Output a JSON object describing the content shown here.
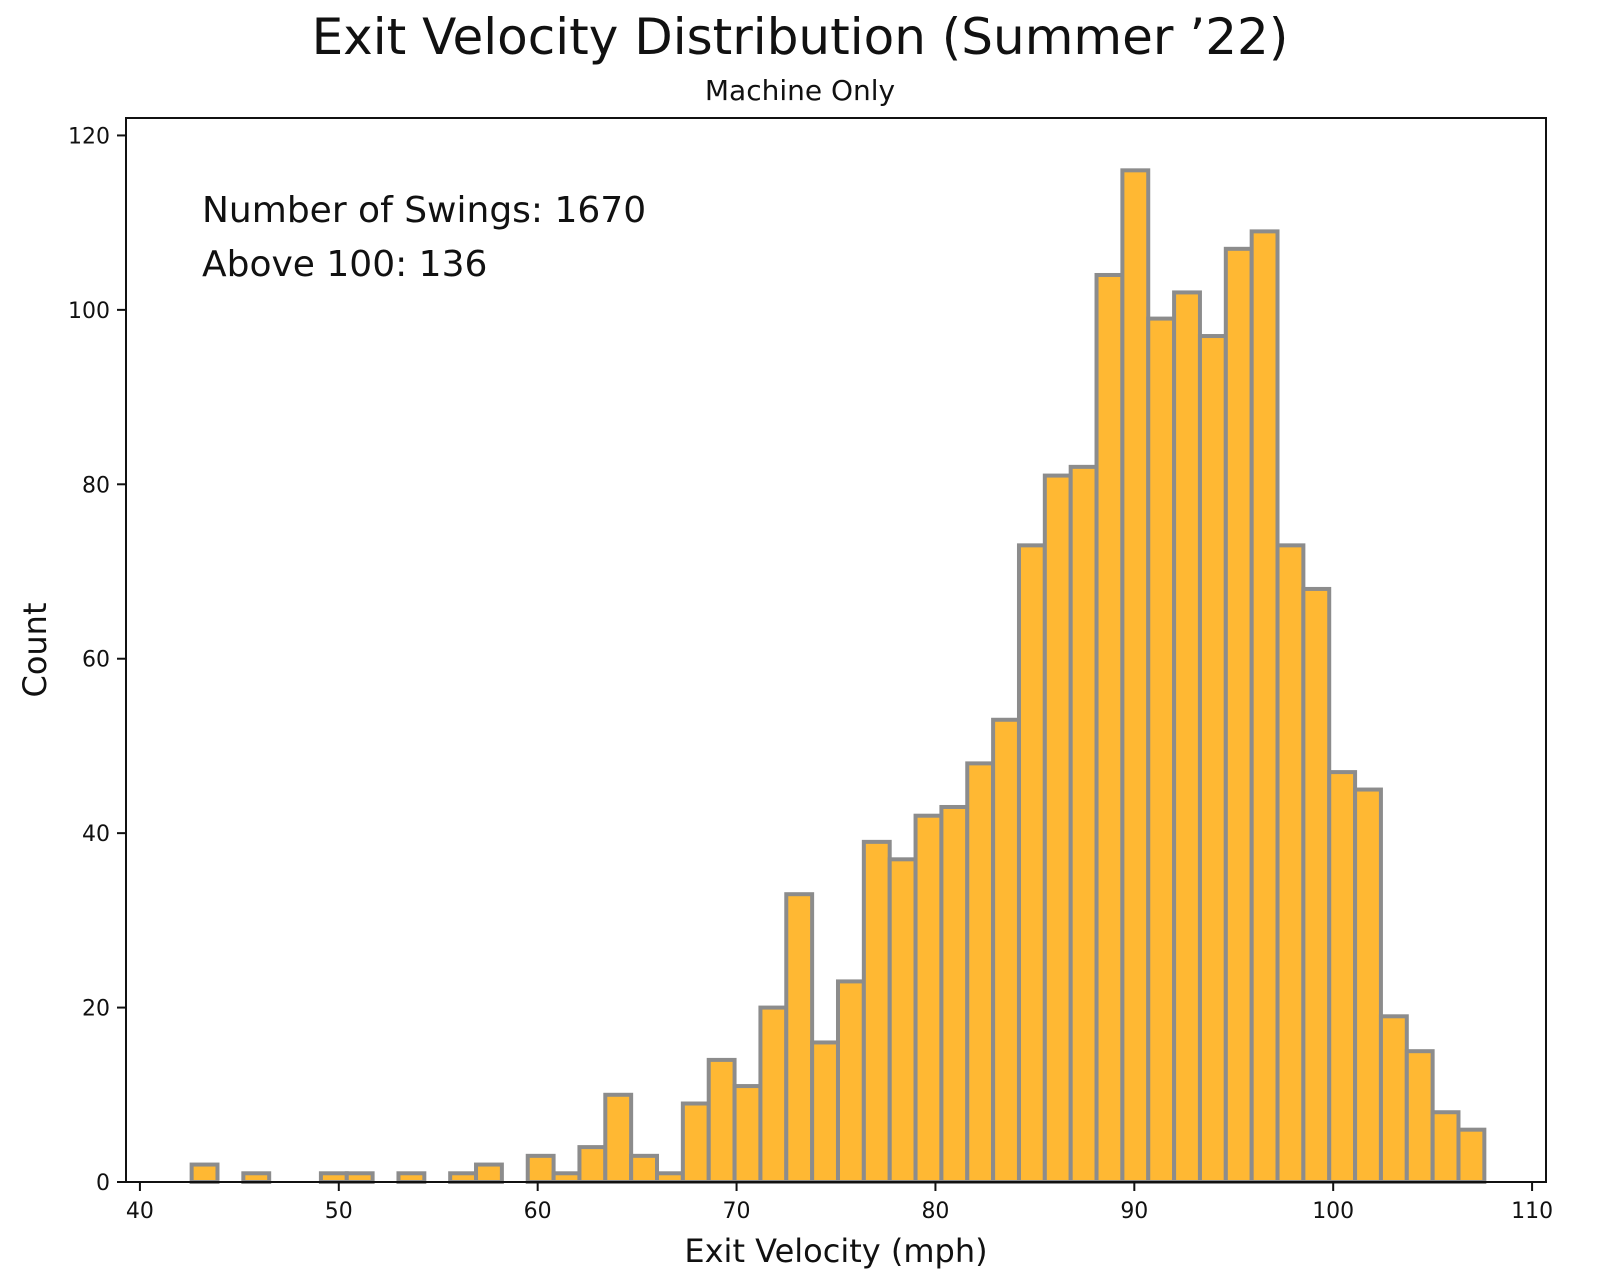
{
  "chart_data": {
    "type": "bar",
    "title": "Exit Velocity Distribution (Summer ’22)",
    "subtitle": "Machine Only",
    "xlabel": "Exit Velocity (mph)",
    "ylabel": "Count",
    "xlim": [
      39.3,
      110.7
    ],
    "ylim": [
      0,
      122
    ],
    "xticks": [
      40,
      50,
      60,
      70,
      80,
      90,
      100,
      110
    ],
    "yticks": [
      0,
      20,
      40,
      60,
      80,
      100,
      120
    ],
    "bin_start": 42.6,
    "bin_width": 1.3,
    "values": [
      2,
      0,
      1,
      0,
      0,
      1,
      1,
      0,
      1,
      0,
      1,
      2,
      0,
      3,
      1,
      4,
      10,
      3,
      1,
      9,
      14,
      11,
      20,
      33,
      16,
      23,
      39,
      37,
      42,
      43,
      48,
      53,
      73,
      81,
      82,
      104,
      116,
      99,
      102,
      97,
      107,
      109,
      73,
      68,
      47,
      45,
      19,
      15,
      8,
      6
    ],
    "bar_color": "#FFB833",
    "edge_color": "#8C8C8C",
    "grid": false,
    "annotations": [
      "Number of Swings: 1670",
      "Above 100: 136"
    ]
  }
}
